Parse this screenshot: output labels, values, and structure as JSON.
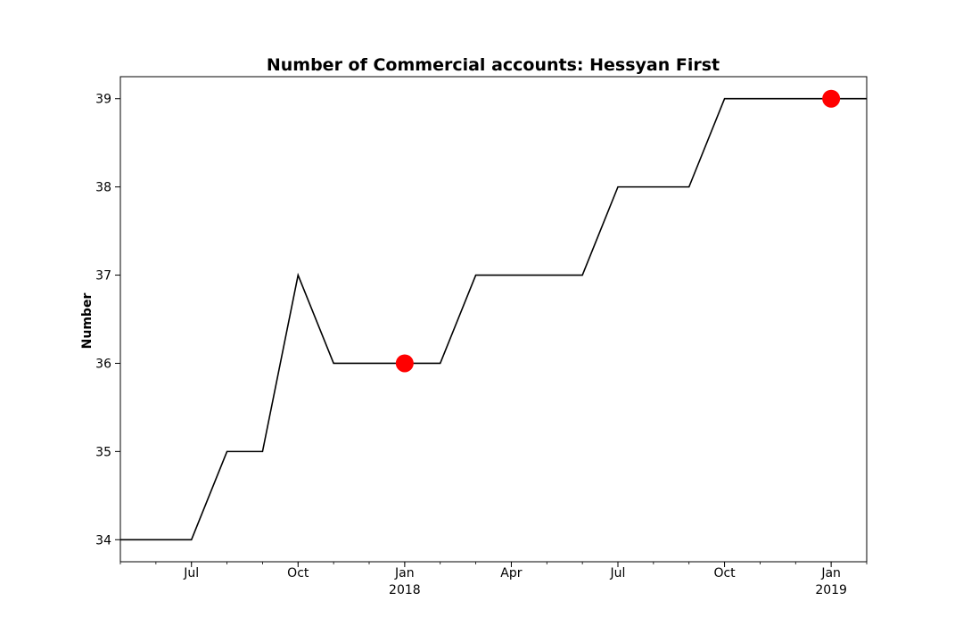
{
  "chart_data": {
    "type": "line",
    "title": "Number of Commercial accounts: Hessyan First",
    "xlabel": "",
    "ylabel": "Number",
    "x": [
      "2017-05",
      "2017-06",
      "2017-07",
      "2017-08",
      "2017-09",
      "2017-10",
      "2017-11",
      "2017-12",
      "2018-01",
      "2018-02",
      "2018-03",
      "2018-04",
      "2018-05",
      "2018-06",
      "2018-07",
      "2018-08",
      "2018-09",
      "2018-10",
      "2018-11",
      "2018-12",
      "2019-01",
      "2019-02"
    ],
    "series": [
      {
        "values": [
          34,
          34,
          34,
          35,
          35,
          37,
          36,
          36,
          36,
          36,
          37,
          37,
          37,
          37,
          38,
          38,
          38,
          39,
          39,
          39,
          39,
          39
        ],
        "color": "#000000"
      }
    ],
    "highlighted_points": [
      {
        "x": "2018-01",
        "y": 36,
        "color": "#ff0000"
      },
      {
        "x": "2019-01",
        "y": 39,
        "color": "#ff0000"
      }
    ],
    "xlim": [
      "2017-05",
      "2019-02"
    ],
    "ylim": [
      33.75,
      39.25
    ],
    "yticks": [
      34,
      35,
      36,
      37,
      38,
      39
    ],
    "xticks": [
      {
        "x": "2017-07",
        "label": "Jul",
        "sublabel": ""
      },
      {
        "x": "2017-10",
        "label": "Oct",
        "sublabel": ""
      },
      {
        "x": "2018-01",
        "label": "Jan",
        "sublabel": "2018"
      },
      {
        "x": "2018-04",
        "label": "Apr",
        "sublabel": ""
      },
      {
        "x": "2018-07",
        "label": "Jul",
        "sublabel": ""
      },
      {
        "x": "2018-10",
        "label": "Oct",
        "sublabel": ""
      },
      {
        "x": "2019-01",
        "label": "Jan",
        "sublabel": "2019"
      }
    ],
    "minor_x_ticks": "monthly",
    "grid": false,
    "legend": "none"
  }
}
